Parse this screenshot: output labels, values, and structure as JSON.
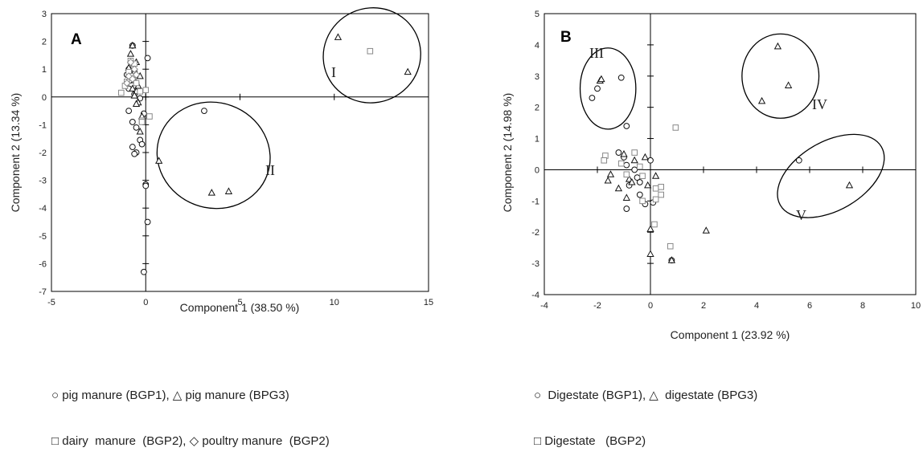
{
  "chart_data": [
    {
      "type": "scatter",
      "panel_label": "A",
      "xlabel": "Component 1 (38.50 %)",
      "ylabel": "Component 2 (13.34 %)",
      "xlim": [
        -5,
        15
      ],
      "ylim": [
        -7,
        3
      ],
      "xticks": [
        -5,
        0,
        5,
        10,
        15
      ],
      "yticks": [
        3,
        2,
        1,
        0,
        -1,
        -2,
        -3,
        -4,
        -5,
        -6,
        -7
      ],
      "grid": false,
      "series": [
        {
          "name": "pig manure (BGP1)",
          "marker": "circle",
          "points": [
            [
              -0.7,
              1.85
            ],
            [
              0.1,
              1.4
            ],
            [
              -0.9,
              1.0
            ],
            [
              -0.6,
              0.9
            ],
            [
              -1.0,
              0.8
            ],
            [
              -0.8,
              0.6
            ],
            [
              -0.5,
              0.5
            ],
            [
              -0.9,
              0.3
            ],
            [
              -0.6,
              0.1
            ],
            [
              -0.3,
              -0.05
            ],
            [
              -0.1,
              -0.6
            ],
            [
              -0.9,
              -0.5
            ],
            [
              -0.7,
              -0.9
            ],
            [
              -0.5,
              -1.1
            ],
            [
              -0.3,
              -1.55
            ],
            [
              -0.2,
              -1.7
            ],
            [
              -0.7,
              -1.8
            ],
            [
              -0.5,
              -2.0
            ],
            [
              -0.6,
              -2.05
            ],
            [
              0.0,
              -3.15
            ],
            [
              0.0,
              -3.2
            ],
            [
              0.1,
              -4.5
            ],
            [
              -0.1,
              -6.3
            ],
            [
              3.1,
              -0.5
            ],
            [
              -0.7,
              1.2
            ]
          ]
        },
        {
          "name": "pig manure (BPG3)",
          "marker": "triangle",
          "points": [
            [
              -0.7,
              1.85
            ],
            [
              -0.8,
              1.55
            ],
            [
              -0.5,
              1.25
            ],
            [
              -0.9,
              1.05
            ],
            [
              -0.6,
              0.9
            ],
            [
              -0.3,
              0.75
            ],
            [
              -0.8,
              0.7
            ],
            [
              -0.6,
              0.6
            ],
            [
              -0.4,
              0.4
            ],
            [
              -0.7,
              0.3
            ],
            [
              -0.5,
              0.2
            ],
            [
              -0.6,
              0.05
            ],
            [
              -0.4,
              -0.2
            ],
            [
              -0.5,
              -0.25
            ],
            [
              -0.2,
              -0.7
            ],
            [
              -0.3,
              -1.25
            ],
            [
              0.7,
              -2.3
            ],
            [
              3.5,
              -3.45
            ],
            [
              4.4,
              -3.4
            ],
            [
              10.2,
              2.15
            ],
            [
              13.9,
              0.9
            ]
          ]
        },
        {
          "name": "dairy manure (BGP2)",
          "marker": "square",
          "points": [
            [
              -0.8,
              1.3
            ],
            [
              -0.6,
              1.2
            ],
            [
              -0.9,
              0.9
            ],
            [
              -0.7,
              0.75
            ],
            [
              -1.0,
              0.55
            ],
            [
              -0.5,
              0.5
            ],
            [
              -1.1,
              0.4
            ],
            [
              -0.3,
              0.2
            ],
            [
              -1.3,
              0.15
            ],
            [
              0.0,
              0.25
            ],
            [
              0.2,
              -0.7
            ],
            [
              -0.2,
              -0.85
            ],
            [
              -0.2,
              -0.9
            ],
            [
              11.9,
              1.65
            ]
          ]
        },
        {
          "name": "poultry manure (BGP2)",
          "marker": "diamond",
          "points": [
            [
              -0.8,
              1.25
            ],
            [
              -0.6,
              1.0
            ],
            [
              -0.9,
              0.75
            ],
            [
              -0.5,
              0.8
            ],
            [
              -0.7,
              0.65
            ],
            [
              -1.0,
              0.5
            ]
          ]
        }
      ],
      "clusters": [
        {
          "label": "I",
          "ellipse": {
            "center": [
              12.0,
              1.5
            ],
            "radius": [
              2.6,
              1.7
            ],
            "rotate": 25
          }
        },
        {
          "label": "II",
          "ellipse": {
            "center": [
              3.6,
              -2.1
            ],
            "radius": [
              2.8,
              2.05
            ],
            "rotate": 70
          }
        }
      ]
    },
    {
      "type": "scatter",
      "panel_label": "B",
      "xlabel": "Component 1 (23.92 %)",
      "ylabel": "Component 2 (14.98 %)",
      "xlim": [
        -4,
        10
      ],
      "ylim": [
        -4,
        5
      ],
      "xticks": [
        -4,
        -2,
        0,
        2,
        4,
        6,
        8,
        10
      ],
      "yticks": [
        5,
        4,
        3,
        2,
        1,
        0,
        -1,
        -2,
        -3,
        -4
      ],
      "grid": false,
      "series": [
        {
          "name": "Digestate (BGP1)",
          "marker": "circle",
          "points": [
            [
              -2.2,
              2.3
            ],
            [
              -2.0,
              2.6
            ],
            [
              -1.1,
              2.95
            ],
            [
              -0.9,
              1.4
            ],
            [
              -1.2,
              0.55
            ],
            [
              -1.0,
              0.4
            ],
            [
              -0.9,
              0.15
            ],
            [
              -0.6,
              0.0
            ],
            [
              -0.5,
              -0.25
            ],
            [
              -0.4,
              -0.4
            ],
            [
              -0.4,
              -0.8
            ],
            [
              -0.2,
              -1.1
            ],
            [
              0.1,
              -1.05
            ],
            [
              -0.9,
              -1.25
            ],
            [
              0.8,
              -2.9
            ],
            [
              5.6,
              0.3
            ],
            [
              0.0,
              0.3
            ],
            [
              -0.8,
              -0.5
            ]
          ]
        },
        {
          "name": "digestate (BPG3)",
          "marker": "triangle",
          "points": [
            [
              -1.9,
              2.85
            ],
            [
              -1.85,
              2.9
            ],
            [
              4.8,
              3.95
            ],
            [
              5.2,
              2.7
            ],
            [
              4.2,
              2.2
            ],
            [
              -1.0,
              0.5
            ],
            [
              -0.6,
              0.3
            ],
            [
              -0.2,
              0.4
            ],
            [
              -1.5,
              -0.15
            ],
            [
              -0.8,
              -0.3
            ],
            [
              -0.7,
              -0.4
            ],
            [
              -1.6,
              -0.35
            ],
            [
              0.2,
              -0.2
            ],
            [
              -1.2,
              -0.6
            ],
            [
              -0.9,
              -0.9
            ],
            [
              -0.1,
              -0.5
            ],
            [
              0.0,
              -1.9
            ],
            [
              0.0,
              -2.7
            ],
            [
              0.8,
              -2.9
            ],
            [
              2.1,
              -1.95
            ],
            [
              7.5,
              -0.5
            ]
          ]
        },
        {
          "name": "Digestate   (BGP2)",
          "marker": "square",
          "points": [
            [
              -1.7,
              0.45
            ],
            [
              -1.75,
              0.3
            ],
            [
              -0.6,
              0.55
            ],
            [
              0.95,
              1.35
            ],
            [
              -1.1,
              0.2
            ],
            [
              -0.9,
              -0.15
            ],
            [
              -0.4,
              0.1
            ],
            [
              -0.3,
              -0.2
            ],
            [
              0.2,
              -0.6
            ],
            [
              0.4,
              -0.55
            ],
            [
              0.4,
              -0.8
            ],
            [
              0.2,
              -0.95
            ],
            [
              -0.3,
              -1.0
            ],
            [
              0.15,
              -1.75
            ],
            [
              0.75,
              -2.45
            ]
          ]
        }
      ],
      "clusters": [
        {
          "label": "III",
          "ellipse": {
            "center": [
              -1.6,
              2.6
            ],
            "radius": [
              1.05,
              1.3
            ],
            "rotate": 0
          }
        },
        {
          "label": "IV",
          "ellipse": {
            "center": [
              4.9,
              3.0
            ],
            "radius": [
              1.45,
              1.35
            ],
            "rotate": 0
          }
        },
        {
          "label": "V",
          "ellipse": {
            "center": [
              6.8,
              -0.2
            ],
            "radius": [
              2.2,
              1.1
            ],
            "rotate": 30
          }
        }
      ]
    }
  ],
  "legends": [
    {
      "lines": [
        "○ pig manure (BGP1), △ pig manure (BPG3)",
        "□ dairy  manure  (BGP2), ◇ poultry manure  (BGP2)"
      ]
    },
    {
      "lines": [
        "○  Digestate (BGP1), △  digestate (BPG3)",
        "□ Digestate   (BGP2)"
      ]
    }
  ],
  "colors": {
    "axis": "#000000",
    "marker_dark": "#111111",
    "marker_gray": "#888888"
  }
}
